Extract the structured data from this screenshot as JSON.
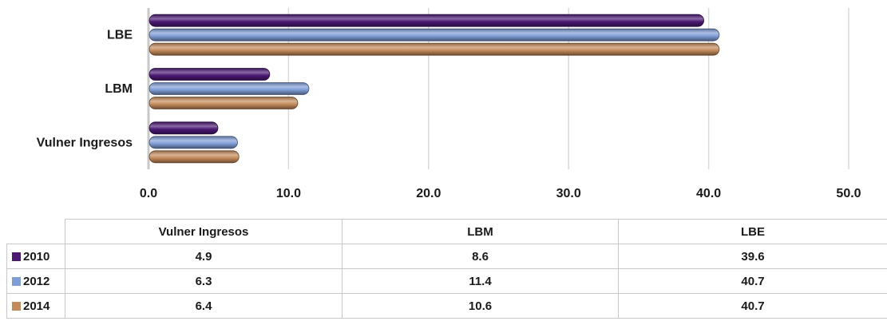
{
  "chart_data": {
    "type": "bar",
    "orientation": "horizontal",
    "categories": [
      "Vulner Ingresos",
      "LBM",
      "LBE"
    ],
    "series": [
      {
        "name": "2010",
        "values": [
          4.9,
          8.6,
          39.6
        ],
        "color": "#4b1874"
      },
      {
        "name": "2012",
        "values": [
          6.3,
          11.4,
          40.7
        ],
        "color": "#7f9dd6"
      },
      {
        "name": "2014",
        "values": [
          6.4,
          10.6,
          40.7
        ],
        "color": "#c48a5a"
      }
    ],
    "xlim": [
      0,
      50
    ],
    "xticks": [
      "0.0",
      "10.0",
      "20.0",
      "30.0",
      "40.0",
      "50.0"
    ],
    "grid": true,
    "legend": "data-table"
  },
  "table": {
    "headers": [
      "Vulner Ingresos",
      "LBM",
      "LBE"
    ],
    "rows": [
      {
        "series": "2010",
        "cells": [
          "4.9",
          "8.6",
          "39.6"
        ]
      },
      {
        "series": "2012",
        "cells": [
          "6.3",
          "11.4",
          "40.7"
        ]
      },
      {
        "series": "2014",
        "cells": [
          "6.4",
          "10.6",
          "40.7"
        ]
      }
    ]
  }
}
